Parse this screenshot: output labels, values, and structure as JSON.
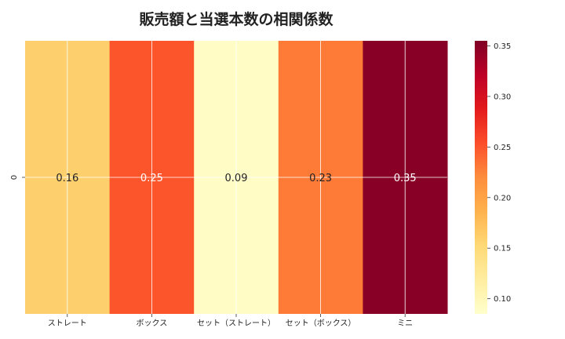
{
  "chart_data": {
    "type": "heatmap",
    "title": "販売額と当選本数の相関係数",
    "row_labels": [
      "0"
    ],
    "categories": [
      "ストレート",
      "ボックス",
      "セット（ストレート）",
      "セット（ボックス）",
      "ミニ"
    ],
    "values": [
      [
        0.16,
        0.25,
        0.09,
        0.23,
        0.35
      ]
    ],
    "value_labels": [
      "0.16",
      "0.25",
      "0.09",
      "0.23",
      "0.35"
    ],
    "colormap": "YlOrRd",
    "colorbar": {
      "min": 0.085,
      "max": 0.355,
      "ticks": [
        0.1,
        0.15,
        0.2,
        0.25,
        0.3,
        0.35
      ],
      "tick_labels": [
        "0.10",
        "0.15",
        "0.20",
        "0.25",
        "0.30",
        "0.35"
      ],
      "placement": "right"
    },
    "grid": true
  }
}
